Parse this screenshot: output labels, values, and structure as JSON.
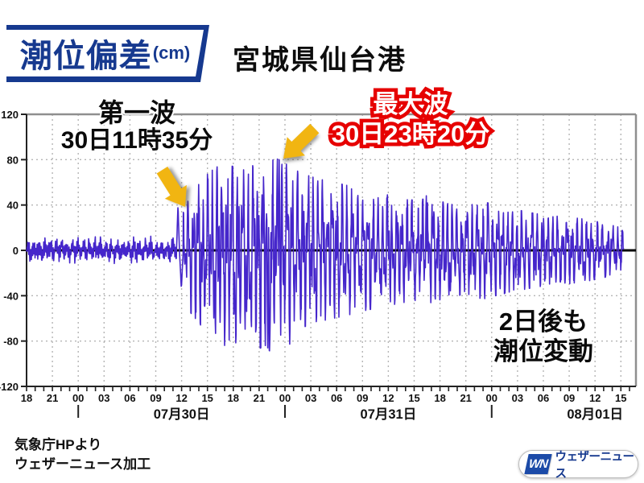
{
  "header": {
    "badge_title": "潮位偏差",
    "badge_unit": "(cm)",
    "location": "宮城県仙台港"
  },
  "annotations": {
    "first_wave": {
      "title": "第一波",
      "time": "30日11時35分"
    },
    "max_wave": {
      "title": "最大波",
      "time": "30日23時20分"
    },
    "aftermath_line1": "2日後も",
    "aftermath_line2": "潮位変動"
  },
  "footer": {
    "source_line1": "気象庁HPより",
    "source_line2": "ウェザーニュース加工",
    "logo_icon": "WN",
    "logo_text": "ウェザーニュース"
  },
  "colors": {
    "brand_blue": "#16398f",
    "line_purple": "#4526cb",
    "arrow_yellow": "#f1b512",
    "alert_red": "#e60000",
    "grid_gray": "#aaaaaa"
  },
  "chart_data": {
    "type": "line",
    "series_name": "潮位偏差",
    "unit": "cm",
    "station": "宮城県仙台港",
    "ylim": [
      -120,
      120
    ],
    "y_ticks": [
      120,
      80,
      40,
      0,
      -40,
      -80,
      -120
    ],
    "x_axis": {
      "start": "07月29日 18時",
      "end": "08月01日 17時",
      "hours_total": 70.75,
      "tick_every_hours": 1,
      "label_every_hours": 3,
      "tick_labels": [
        "18",
        "21",
        "00",
        "03",
        "06",
        "09",
        "12",
        "15",
        "18",
        "21",
        "00",
        "03",
        "06",
        "09",
        "12",
        "15",
        "18",
        "21",
        "00",
        "03",
        "06",
        "09",
        "12",
        "15"
      ],
      "date_labels": [
        {
          "label": "07月30日",
          "day_start_hour": 6,
          "center_hour": 18
        },
        {
          "label": "07月31日",
          "day_start_hour": 30,
          "center_hour": 42
        },
        {
          "label": "08月01日",
          "day_start_hour": 54,
          "center_hour": 66
        }
      ]
    },
    "key_events": [
      {
        "name": "第一波",
        "time": "30日11時35分",
        "hours_from_start": 17.58,
        "peak_cm": 40
      },
      {
        "name": "最大波",
        "time": "30日23時20分",
        "hours_from_start": 29.33,
        "peak_cm": 80
      }
    ],
    "pre_event_noise_cm": 8,
    "deepest_trough_cm": -86,
    "deepest_trough_hour": 28.0,
    "secondary_spike": {
      "hours_from_start": 46.4,
      "peak_cm": 55
    },
    "data_end_hour": 69.3,
    "amplitude_envelope_cm": [
      [
        18.2,
        32
      ],
      [
        19,
        46
      ],
      [
        20,
        58
      ],
      [
        21,
        64
      ],
      [
        22,
        70
      ],
      [
        23.5,
        72
      ],
      [
        25,
        67
      ],
      [
        26.5,
        72
      ],
      [
        28,
        75
      ],
      [
        29.3,
        77
      ],
      [
        31,
        68
      ],
      [
        33,
        62
      ],
      [
        35,
        58
      ],
      [
        37,
        55
      ],
      [
        39,
        51
      ],
      [
        41,
        48
      ],
      [
        43,
        45
      ],
      [
        45,
        42
      ],
      [
        47,
        44
      ],
      [
        49,
        39
      ],
      [
        51,
        37
      ],
      [
        53,
        41
      ],
      [
        55,
        37
      ],
      [
        57,
        34
      ],
      [
        59,
        31
      ],
      [
        61,
        29
      ],
      [
        63,
        28
      ],
      [
        65,
        26
      ],
      [
        67,
        23
      ],
      [
        69,
        19
      ],
      [
        71,
        16
      ]
    ],
    "grid": true,
    "line_color": "#4526cb",
    "zero_line_color": "#000000"
  }
}
